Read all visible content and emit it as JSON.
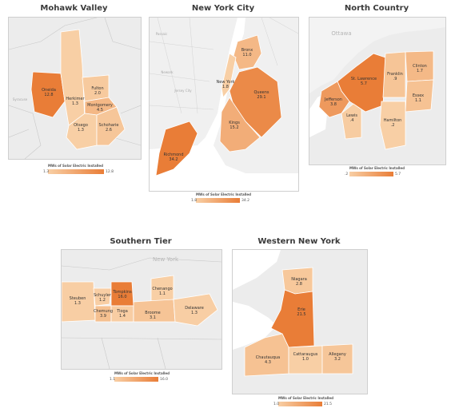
{
  "legend_title": "MWs of Solar Electric Installed",
  "colors": {
    "low": "#f8cfa5",
    "high": "#e97d37",
    "water": "#ffffff",
    "land": "#ececec",
    "border": "#bdbdbd"
  },
  "regions": [
    {
      "title": "Mohawk Valley",
      "legend_min": "1.3",
      "legend_max": "12.8",
      "min": 1.3,
      "max": 12.8,
      "counties": [
        {
          "name": "Oneida",
          "value": "12.8",
          "v": 12.8
        },
        {
          "name": "Herkimer",
          "value": "1.3",
          "v": 1.3
        },
        {
          "name": "Fulton",
          "value": "2.0",
          "v": 2.0
        },
        {
          "name": "Montgomery",
          "value": "4.5",
          "v": 4.5
        },
        {
          "name": "Otsego",
          "value": "1.3",
          "v": 1.3
        },
        {
          "name": "Schoharie",
          "value": "2.6",
          "v": 2.6
        }
      ],
      "bg_labels": [
        "Syracuse"
      ]
    },
    {
      "title": "New York City",
      "legend_min": "1.8",
      "legend_max": "34.2",
      "min": 1.8,
      "max": 34.2,
      "counties": [
        {
          "name": "Bronx",
          "value": "11.0",
          "v": 11.0
        },
        {
          "name": "New York",
          "value": "1.8",
          "v": 1.8
        },
        {
          "name": "Queens",
          "value": "29.1",
          "v": 29.1
        },
        {
          "name": "Kings",
          "value": "15.2",
          "v": 15.2
        },
        {
          "name": "Richmond",
          "value": "34.2",
          "v": 34.2
        }
      ],
      "bg_labels": [
        "Jersey City",
        "Newark",
        "Passaic"
      ]
    },
    {
      "title": "North Country",
      "legend_min": ".2",
      "legend_max": "5.7",
      "min": 0.2,
      "max": 5.7,
      "counties": [
        {
          "name": "St. Lawrence",
          "value": "5.7",
          "v": 5.7
        },
        {
          "name": "Franklin",
          "value": ".9",
          "v": 0.9
        },
        {
          "name": "Clinton",
          "value": "1.7",
          "v": 1.7
        },
        {
          "name": "Jefferson",
          "value": "3.8",
          "v": 3.8
        },
        {
          "name": "Lewis",
          "value": ".4",
          "v": 0.4
        },
        {
          "name": "Essex",
          "value": "1.1",
          "v": 1.1
        },
        {
          "name": "Hamilton",
          "value": ".2",
          "v": 0.2
        }
      ],
      "bg_labels": [
        "Ottawa"
      ]
    },
    {
      "title": "Southern Tier",
      "legend_min": "1.1",
      "legend_max": "16.0",
      "min": 1.1,
      "max": 16.0,
      "counties": [
        {
          "name": "Steuben",
          "value": "1.3",
          "v": 1.3
        },
        {
          "name": "Schuyler",
          "value": "1.2",
          "v": 1.2
        },
        {
          "name": "Tompkins",
          "value": "16.0",
          "v": 16.0
        },
        {
          "name": "Chenango",
          "value": "1.1",
          "v": 1.1
        },
        {
          "name": "Chemung",
          "value": "3.9",
          "v": 3.9
        },
        {
          "name": "Tioga",
          "value": "1.4",
          "v": 1.4
        },
        {
          "name": "Broome",
          "value": "3.1",
          "v": 3.1
        },
        {
          "name": "Delaware",
          "value": "1.3",
          "v": 1.3
        }
      ],
      "bg_labels": [
        "New York"
      ]
    },
    {
      "title": "Western New York",
      "legend_min": "1.0",
      "legend_max": "21.5",
      "min": 1.0,
      "max": 21.5,
      "counties": [
        {
          "name": "Niagara",
          "value": "2.8",
          "v": 2.8
        },
        {
          "name": "Erie",
          "value": "21.5",
          "v": 21.5
        },
        {
          "name": "Chautauqua",
          "value": "4.3",
          "v": 4.3
        },
        {
          "name": "Cattaraugus",
          "value": "1.0",
          "v": 1.0
        },
        {
          "name": "Allegany",
          "value": "3.2",
          "v": 3.2
        }
      ],
      "bg_labels": []
    }
  ]
}
